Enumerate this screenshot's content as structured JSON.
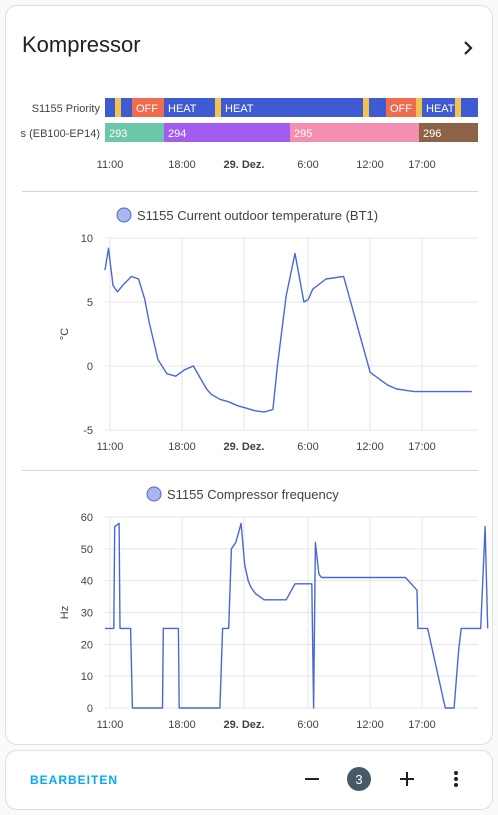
{
  "card": {
    "title": "Kompressor"
  },
  "timeline": {
    "rows": [
      {
        "label": "S1155 Priority",
        "segments": [
          {
            "text": "",
            "color": "#3f5bd3"
          },
          {
            "text": "",
            "color": "#f2c14e"
          },
          {
            "text": "",
            "color": "#3f5bd3"
          },
          {
            "text": "OFF",
            "color": "#ef6c4f"
          },
          {
            "text": "HEAT",
            "color": "#3f5bd3"
          },
          {
            "text": "",
            "color": "#f2c14e"
          },
          {
            "text": "HEAT",
            "color": "#3f5bd3"
          },
          {
            "text": "",
            "color": "#f2c14e"
          },
          {
            "text": "",
            "color": "#3f5bd3"
          },
          {
            "text": "OFF",
            "color": "#ef6c4f"
          },
          {
            "text": "",
            "color": "#f2c14e"
          },
          {
            "text": "HEAT",
            "color": "#3f5bd3"
          },
          {
            "text": "",
            "color": "#f2c14e"
          },
          {
            "text": "",
            "color": "#3f5bd3"
          }
        ]
      },
      {
        "label": "s (EB100-EP14)",
        "segments": [
          {
            "text": "293",
            "color": "#6cc6a9"
          },
          {
            "text": "294",
            "color": "#a35bf0"
          },
          {
            "text": "295",
            "color": "#f48fb1"
          },
          {
            "text": "296",
            "color": "#8d6347"
          }
        ]
      }
    ],
    "x_ticks": [
      "11:00",
      "18:00",
      "29. Dez.",
      "6:00",
      "12:00",
      "17:00"
    ]
  },
  "chart_data": [
    {
      "type": "line",
      "title": "",
      "legend": "S1155 Current outdoor temperature (BT1)",
      "ylabel": "°C",
      "ylim": [
        -5,
        10
      ],
      "y_ticks": [
        "10",
        "5",
        "0",
        "-5"
      ],
      "x_ticks": [
        "11:00",
        "18:00",
        "29. Dez.",
        "6:00",
        "12:00",
        "17:00"
      ],
      "color": "#4a67d6",
      "series": [
        {
          "name": "S1155 Current outdoor temperature (BT1)",
          "x_hours": [
            0,
            0.4,
            0.9,
            1.4,
            2.0,
            3.0,
            3.8,
            4.5,
            5.0,
            6.0,
            7.0,
            8.0,
            9.0,
            10.0,
            11.0,
            11.5,
            12.0,
            13.0,
            14.0,
            15.0,
            16.0,
            17.0,
            18.0,
            19.0,
            19.5,
            20.5,
            21.5,
            22.5,
            23.0,
            23.5,
            25.0,
            27.0,
            28.0,
            29.0,
            30.0,
            31.0,
            32.0,
            33.0,
            34.0,
            35.0,
            36.0,
            37.0,
            38.0,
            39.0,
            40.5,
            41.5
          ],
          "values": [
            7.5,
            9.2,
            6.3,
            5.8,
            6.3,
            7.0,
            6.8,
            5.2,
            3.4,
            0.5,
            -0.6,
            -0.8,
            -0.3,
            0.0,
            -1.2,
            -1.8,
            -2.2,
            -2.6,
            -2.8,
            -3.1,
            -3.3,
            -3.5,
            -3.6,
            -3.4,
            0.0,
            5.5,
            8.8,
            5.0,
            5.2,
            6.0,
            6.8,
            7.0,
            4.5,
            2.0,
            -0.5,
            -1.0,
            -1.5,
            -1.8,
            -1.9,
            -2.0,
            -2.0,
            -2.0,
            -2.0,
            -2.0,
            -2.0,
            -2.0
          ]
        }
      ]
    },
    {
      "type": "line",
      "title": "",
      "legend": "S1155 Compressor frequency",
      "ylabel": "Hz",
      "ylim": [
        0,
        60
      ],
      "y_ticks": [
        "60",
        "50",
        "40",
        "30",
        "20",
        "10",
        "0"
      ],
      "x_ticks": [
        "11:00",
        "18:00",
        "29. Dez.",
        "6:00",
        "12:00",
        "17:00"
      ],
      "color": "#4a67d6",
      "series": [
        {
          "name": "S1155 Compressor frequency",
          "x_hours": [
            0,
            1.0,
            1.1,
            1.6,
            1.7,
            2.9,
            3.1,
            6.5,
            6.6,
            8.3,
            8.4,
            13.0,
            13.3,
            14.0,
            14.3,
            14.8,
            15.4,
            15.8,
            16.2,
            16.5,
            17.0,
            18.0,
            18.5,
            19.0,
            20.0,
            20.5,
            21.5,
            23.2,
            23.4,
            23.6,
            23.8,
            24.2,
            24.5,
            30.0,
            30.5,
            31.0,
            32.0,
            33.0,
            34.0,
            35.3,
            35.4,
            36.0,
            36.5,
            38.5,
            39.5,
            40.0,
            40.3,
            41.0,
            41.5,
            42.0,
            42.5,
            43.0,
            43.3
          ],
          "values": [
            25,
            25,
            57,
            58,
            25,
            25,
            0,
            0,
            25,
            25,
            0,
            0,
            25,
            25,
            50,
            52,
            58,
            45,
            40,
            38,
            36,
            34,
            34,
            34,
            34,
            34,
            39,
            39,
            39,
            0,
            52,
            42,
            41,
            41,
            41,
            41,
            41,
            41,
            41,
            37,
            25,
            25,
            25,
            0,
            0,
            18,
            25,
            25,
            25,
            25,
            25,
            57,
            25
          ]
        }
      ]
    }
  ],
  "footer": {
    "edit_label": "BEARBEITEN",
    "badge_count": "3"
  }
}
